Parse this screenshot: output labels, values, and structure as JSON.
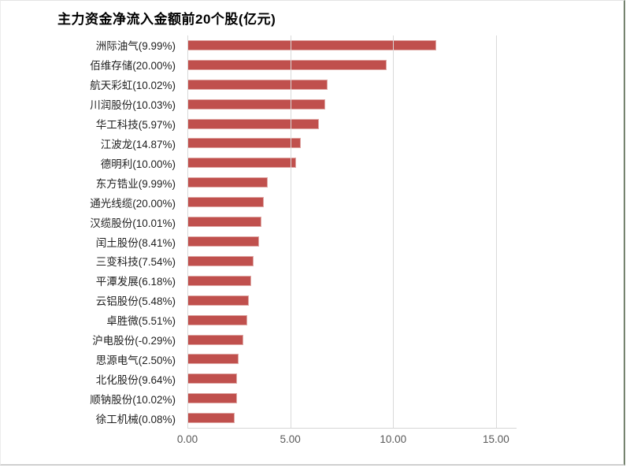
{
  "chart_data": {
    "type": "bar",
    "orientation": "horizontal",
    "title": "主力资金净流入金额前20个股(亿元)",
    "categories": [
      "洲际油气(9.99%)",
      "佰维存储(20.00%)",
      "航天彩虹(10.02%)",
      "川润股份(10.03%)",
      "华工科技(5.97%)",
      "江波龙(14.87%)",
      "德明利(10.00%)",
      "东方锆业(9.99%)",
      "通光线缆(20.00%)",
      "汉缆股份(10.01%)",
      "闰土股份(8.41%)",
      "三变科技(7.54%)",
      "平潭发展(6.18%)",
      "云铝股份(5.48%)",
      "卓胜微(5.51%)",
      "沪电股份(-0.29%)",
      "思源电气(2.50%)",
      "北化股份(9.64%)",
      "顺钠股份(10.02%)",
      "徐工机械(0.08%)"
    ],
    "values": [
      12.1,
      9.7,
      6.8,
      6.7,
      6.4,
      5.5,
      5.3,
      3.9,
      3.7,
      3.6,
      3.5,
      3.2,
      3.1,
      3.0,
      2.9,
      2.7,
      2.5,
      2.4,
      2.4,
      2.3
    ],
    "x_tick_labels": [
      "0.00",
      "5.00",
      "10.00",
      "15.00"
    ],
    "x_tick_values": [
      0,
      5,
      10,
      15
    ],
    "xlim": [
      0,
      16
    ],
    "ylabel": "",
    "xlabel": "",
    "legend": "none",
    "grid": "vertical-only",
    "bar_color": "#c0504d",
    "bar_border_color": "#dfa7a4",
    "gridline_color": "#d9d9d9",
    "axis_tick_color": "#595959",
    "category_label_color": "#1f1f1f",
    "title_color": "#000000"
  }
}
